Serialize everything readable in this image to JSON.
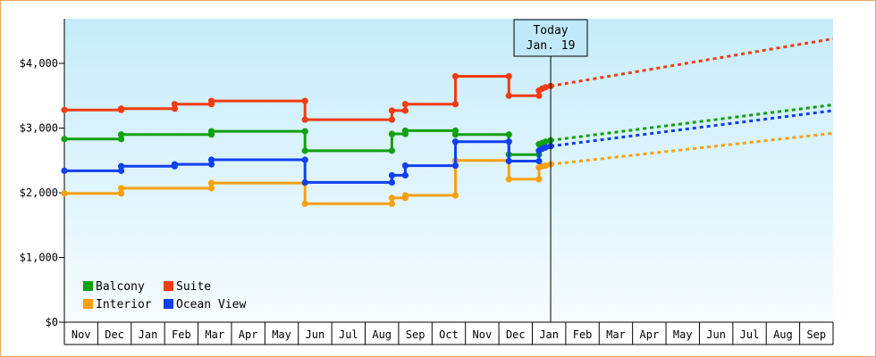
{
  "chart_data": {
    "type": "line",
    "title": "",
    "xlabel": "",
    "ylabel": "",
    "ylim": [
      0,
      4700
    ],
    "y_ticks": [
      {
        "value": 0,
        "label": "$0"
      },
      {
        "value": 1000,
        "label": "$1,000"
      },
      {
        "value": 2000,
        "label": "$2,000"
      },
      {
        "value": 3000,
        "label": "$3,000"
      },
      {
        "value": 4000,
        "label": "$4,000"
      }
    ],
    "x_ticks": [
      "Nov",
      "Dec",
      "Jan",
      "Feb",
      "Mar",
      "Apr",
      "May",
      "Jun",
      "Jul",
      "Aug",
      "Sep",
      "Oct",
      "Nov",
      "Dec",
      "Jan",
      "Feb",
      "Mar",
      "Apr",
      "May",
      "Jun",
      "Jul",
      "Aug",
      "Sep"
    ],
    "x_range_months": [
      0,
      23
    ],
    "today": {
      "line1": "Today",
      "line2": "Jan. 19",
      "x": 14.55
    },
    "grid": false,
    "legend_position": "bottom-left",
    "series": [
      {
        "name": "Balcony",
        "color": "#10a010",
        "points": [
          [
            0,
            2830
          ],
          [
            1.7,
            2830
          ],
          [
            1.7,
            2900
          ],
          [
            4.4,
            2900
          ],
          [
            4.4,
            2950
          ],
          [
            7.2,
            2950
          ],
          [
            7.2,
            2650
          ],
          [
            9.8,
            2650
          ],
          [
            9.8,
            2910
          ],
          [
            10.2,
            2910
          ],
          [
            10.2,
            2960
          ],
          [
            11.7,
            2960
          ],
          [
            11.7,
            2900
          ],
          [
            13.3,
            2900
          ],
          [
            13.3,
            2590
          ],
          [
            14.2,
            2590
          ],
          [
            14.2,
            2750
          ],
          [
            14.3,
            2770
          ],
          [
            14.4,
            2790
          ],
          [
            14.55,
            2810
          ]
        ],
        "markers": [
          [
            0,
            2830
          ],
          [
            1.7,
            2830
          ],
          [
            1.7,
            2900
          ],
          [
            4.4,
            2900
          ],
          [
            4.4,
            2950
          ],
          [
            7.2,
            2950
          ],
          [
            7.2,
            2650
          ],
          [
            9.8,
            2650
          ],
          [
            9.8,
            2910
          ],
          [
            10.2,
            2910
          ],
          [
            10.2,
            2960
          ],
          [
            11.7,
            2960
          ],
          [
            11.7,
            2900
          ],
          [
            13.3,
            2900
          ],
          [
            13.3,
            2590
          ],
          [
            14.2,
            2590
          ],
          [
            14.2,
            2750
          ],
          [
            14.3,
            2770
          ],
          [
            14.4,
            2790
          ],
          [
            14.55,
            2810
          ]
        ],
        "forecast": [
          [
            14.55,
            2810
          ],
          [
            23,
            3360
          ]
        ]
      },
      {
        "name": "Suite",
        "color": "#f03c10",
        "points": [
          [
            0,
            3280
          ],
          [
            1.7,
            3280
          ],
          [
            1.7,
            3300
          ],
          [
            3.3,
            3300
          ],
          [
            3.3,
            3370
          ],
          [
            4.4,
            3370
          ],
          [
            4.4,
            3420
          ],
          [
            7.2,
            3420
          ],
          [
            7.2,
            3130
          ],
          [
            9.8,
            3130
          ],
          [
            9.8,
            3270
          ],
          [
            10.2,
            3270
          ],
          [
            10.2,
            3370
          ],
          [
            11.7,
            3370
          ],
          [
            11.7,
            3800
          ],
          [
            13.3,
            3800
          ],
          [
            13.3,
            3500
          ],
          [
            14.2,
            3500
          ],
          [
            14.2,
            3580
          ],
          [
            14.3,
            3610
          ],
          [
            14.4,
            3630
          ],
          [
            14.55,
            3650
          ]
        ],
        "markers": [
          [
            0,
            3280
          ],
          [
            1.7,
            3280
          ],
          [
            1.7,
            3300
          ],
          [
            3.3,
            3300
          ],
          [
            3.3,
            3370
          ],
          [
            4.4,
            3370
          ],
          [
            4.4,
            3420
          ],
          [
            7.2,
            3420
          ],
          [
            7.2,
            3130
          ],
          [
            9.8,
            3130
          ],
          [
            9.8,
            3270
          ],
          [
            10.2,
            3270
          ],
          [
            10.2,
            3370
          ],
          [
            11.7,
            3370
          ],
          [
            11.7,
            3800
          ],
          [
            13.3,
            3800
          ],
          [
            13.3,
            3500
          ],
          [
            14.2,
            3500
          ],
          [
            14.2,
            3580
          ],
          [
            14.3,
            3610
          ],
          [
            14.4,
            3630
          ],
          [
            14.55,
            3650
          ]
        ],
        "forecast": [
          [
            14.55,
            3650
          ],
          [
            23,
            4380
          ]
        ]
      },
      {
        "name": "Interior",
        "color": "#f8a010",
        "points": [
          [
            0,
            1990
          ],
          [
            1.7,
            1990
          ],
          [
            1.7,
            2070
          ],
          [
            4.4,
            2070
          ],
          [
            4.4,
            2150
          ],
          [
            7.2,
            2150
          ],
          [
            7.2,
            1830
          ],
          [
            9.8,
            1830
          ],
          [
            9.8,
            1920
          ],
          [
            10.2,
            1920
          ],
          [
            10.2,
            1960
          ],
          [
            11.7,
            1960
          ],
          [
            11.7,
            2500
          ],
          [
            13.3,
            2500
          ],
          [
            13.3,
            2210
          ],
          [
            14.2,
            2210
          ],
          [
            14.2,
            2390
          ],
          [
            14.3,
            2410
          ],
          [
            14.4,
            2420
          ],
          [
            14.55,
            2440
          ]
        ],
        "markers": [
          [
            0,
            1990
          ],
          [
            1.7,
            1990
          ],
          [
            1.7,
            2070
          ],
          [
            4.4,
            2070
          ],
          [
            4.4,
            2150
          ],
          [
            7.2,
            2150
          ],
          [
            7.2,
            1830
          ],
          [
            9.8,
            1830
          ],
          [
            9.8,
            1920
          ],
          [
            10.2,
            1920
          ],
          [
            10.2,
            1960
          ],
          [
            11.7,
            1960
          ],
          [
            11.7,
            2500
          ],
          [
            13.3,
            2210
          ],
          [
            14.2,
            2210
          ],
          [
            14.2,
            2390
          ],
          [
            14.3,
            2410
          ],
          [
            14.4,
            2420
          ],
          [
            14.55,
            2440
          ]
        ],
        "forecast": [
          [
            14.55,
            2440
          ],
          [
            23,
            2920
          ]
        ]
      },
      {
        "name": "Ocean View",
        "color": "#1040f0",
        "points": [
          [
            0,
            2340
          ],
          [
            1.7,
            2340
          ],
          [
            1.7,
            2410
          ],
          [
            3.3,
            2410
          ],
          [
            3.3,
            2440
          ],
          [
            4.4,
            2440
          ],
          [
            4.4,
            2510
          ],
          [
            7.2,
            2510
          ],
          [
            7.2,
            2160
          ],
          [
            9.8,
            2160
          ],
          [
            9.8,
            2270
          ],
          [
            10.2,
            2270
          ],
          [
            10.2,
            2420
          ],
          [
            11.7,
            2420
          ],
          [
            11.7,
            2790
          ],
          [
            13.3,
            2790
          ],
          [
            13.3,
            2490
          ],
          [
            14.2,
            2490
          ],
          [
            14.2,
            2650
          ],
          [
            14.3,
            2680
          ],
          [
            14.4,
            2700
          ],
          [
            14.55,
            2720
          ]
        ],
        "markers": [
          [
            0,
            2340
          ],
          [
            1.7,
            2340
          ],
          [
            1.7,
            2410
          ],
          [
            3.3,
            2410
          ],
          [
            3.3,
            2440
          ],
          [
            4.4,
            2440
          ],
          [
            4.4,
            2510
          ],
          [
            7.2,
            2510
          ],
          [
            7.2,
            2160
          ],
          [
            9.8,
            2160
          ],
          [
            9.8,
            2270
          ],
          [
            10.2,
            2270
          ],
          [
            10.2,
            2420
          ],
          [
            11.7,
            2420
          ],
          [
            11.7,
            2790
          ],
          [
            13.3,
            2790
          ],
          [
            13.3,
            2490
          ],
          [
            14.2,
            2490
          ],
          [
            14.2,
            2650
          ],
          [
            14.3,
            2680
          ],
          [
            14.4,
            2700
          ],
          [
            14.55,
            2720
          ]
        ],
        "forecast": [
          [
            14.55,
            2720
          ],
          [
            23,
            3270
          ]
        ]
      }
    ]
  }
}
